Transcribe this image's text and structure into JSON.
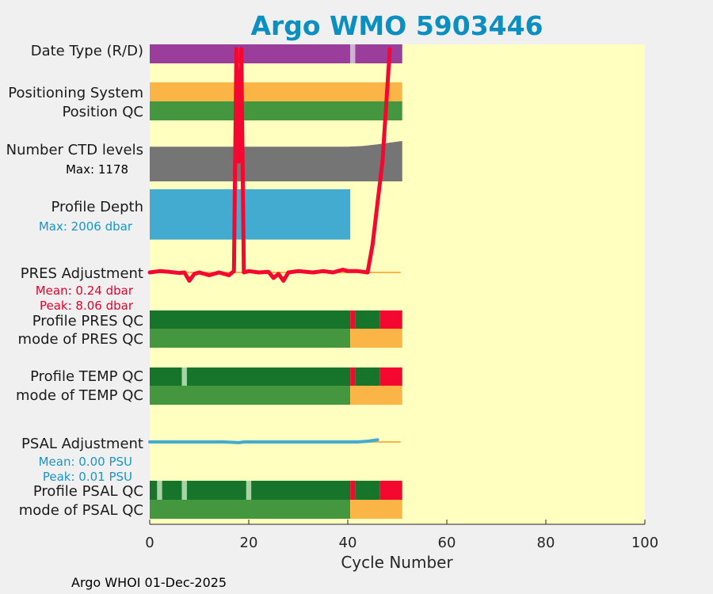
{
  "chart_data": {
    "type": "bar",
    "title": "Argo WMO 5903446",
    "xlabel": "Cycle Number",
    "footer": "Argo WHOI 01-Dec-2025",
    "xlim": [
      0,
      100
    ],
    "xticks": [
      0,
      20,
      40,
      60,
      80,
      100
    ],
    "data_extent": [
      0,
      51
    ],
    "colors": {
      "title": "#0b8fc0",
      "plot_bg": "#ffffc0",
      "real_time": "#9b3d9b",
      "delayed_gap": "#ccb2d4",
      "good": "#45973f",
      "good_dark": "#17742b",
      "probably_bad": "#fbb547",
      "bad": "#f40830",
      "missing_light": "#a9d2a5",
      "ctd": "#757575",
      "depth": "#43aad0",
      "pres_line": "#f40830",
      "psal_line": "#43aad0",
      "zero_line": "#fbb547",
      "pres_text": "#e8002a",
      "psal_text": "#1895c9"
    },
    "rows": {
      "data_type": {
        "label": "Date Type (R/D)",
        "segments": [
          {
            "from": 0,
            "to": 40.5,
            "color": "real_time"
          },
          {
            "from": 40.5,
            "to": 41.5,
            "color": "delayed_gap"
          },
          {
            "from": 41.5,
            "to": 51,
            "color": "real_time"
          }
        ]
      },
      "positioning_system": {
        "label": "Positioning System",
        "segments": [
          {
            "from": 0,
            "to": 51,
            "color": "probably_bad"
          }
        ]
      },
      "position_qc": {
        "label": "Position QC",
        "segments": [
          {
            "from": 0,
            "to": 51,
            "color": "good"
          }
        ]
      },
      "ctd_levels": {
        "label": "Number CTD levels",
        "max_label": "Max: 1178",
        "max": 1178,
        "values": [
          [
            0,
            1010
          ],
          [
            40,
            1010
          ],
          [
            43,
            1030
          ],
          [
            46,
            1080
          ],
          [
            48,
            1120
          ],
          [
            51,
            1178
          ]
        ]
      },
      "profile_depth": {
        "label": "Profile Depth",
        "max_label": "Max: 2006 dbar",
        "max_dbar": 2006,
        "values": [
          [
            0,
            1960
          ],
          [
            40.5,
            1960
          ]
        ]
      },
      "pres_adjustment": {
        "label": "PRES Adjustment",
        "mean_label": "Mean: 0.24 dbar",
        "peak_label": "Peak: 8.06 dbar",
        "line": [
          [
            0,
            0.0
          ],
          [
            2,
            0.05
          ],
          [
            4,
            0.02
          ],
          [
            6,
            -0.02
          ],
          [
            7,
            0.0
          ],
          [
            8,
            -0.3
          ],
          [
            9,
            -0.05
          ],
          [
            10,
            0.0
          ],
          [
            12,
            -0.1
          ],
          [
            14,
            0.0
          ],
          [
            16,
            -0.1
          ],
          [
            17,
            0.05
          ],
          [
            17.5,
            8.06
          ],
          [
            18,
            4.0
          ],
          [
            18.5,
            8.06
          ],
          [
            19,
            0.0
          ],
          [
            20,
            0.05
          ],
          [
            22,
            0.0
          ],
          [
            24,
            0.02
          ],
          [
            25,
            -0.2
          ],
          [
            26,
            -0.05
          ],
          [
            27,
            -0.3
          ],
          [
            28,
            0.0
          ],
          [
            30,
            0.05
          ],
          [
            33,
            0.0
          ],
          [
            35,
            0.05
          ],
          [
            37,
            0.0
          ],
          [
            39,
            0.1
          ],
          [
            40,
            0.05
          ],
          [
            42,
            0.05
          ],
          [
            44,
            0.0
          ],
          [
            45,
            1.0
          ],
          [
            46,
            2.5
          ],
          [
            47,
            4.0
          ],
          [
            48.5,
            8.06
          ]
        ]
      },
      "profile_pres_qc": {
        "label": "Profile PRES QC",
        "segments": [
          {
            "from": 0,
            "to": 40.5,
            "color": "good_dark"
          },
          {
            "from": 40.5,
            "to": 41.5,
            "color": "bad"
          },
          {
            "from": 41.5,
            "to": 46.5,
            "color": "good_dark"
          },
          {
            "from": 46.5,
            "to": 51,
            "color": "bad"
          }
        ]
      },
      "mode_pres_qc": {
        "label": "mode of PRES QC",
        "segments": [
          {
            "from": 0,
            "to": 40.5,
            "color": "good"
          },
          {
            "from": 40.5,
            "to": 51,
            "color": "probably_bad"
          }
        ]
      },
      "profile_temp_qc": {
        "label": "Profile TEMP QC",
        "segments": [
          {
            "from": 0,
            "to": 6.5,
            "color": "good_dark"
          },
          {
            "from": 6.5,
            "to": 7.5,
            "color": "missing_light"
          },
          {
            "from": 7.5,
            "to": 40.5,
            "color": "good_dark"
          },
          {
            "from": 40.5,
            "to": 41.5,
            "color": "bad"
          },
          {
            "from": 41.5,
            "to": 46.5,
            "color": "good_dark"
          },
          {
            "from": 46.5,
            "to": 51,
            "color": "bad"
          }
        ]
      },
      "mode_temp_qc": {
        "label": "mode of TEMP QC",
        "segments": [
          {
            "from": 0,
            "to": 40.5,
            "color": "good"
          },
          {
            "from": 40.5,
            "to": 51,
            "color": "probably_bad"
          }
        ]
      },
      "psal_adjustment": {
        "label": "PSAL Adjustment",
        "mean_label": "Mean: 0.00 PSU",
        "peak_label": "Peak: 0.01 PSU",
        "line": [
          [
            0,
            0.0
          ],
          [
            5,
            0.0
          ],
          [
            10,
            0.0
          ],
          [
            15,
            0.0
          ],
          [
            18,
            -0.001
          ],
          [
            19,
            0.0
          ],
          [
            25,
            0.0
          ],
          [
            30,
            0.0
          ],
          [
            35,
            0.0
          ],
          [
            40,
            0.0
          ],
          [
            42,
            0.0
          ],
          [
            44,
            0.001
          ],
          [
            46,
            0.003
          ]
        ]
      },
      "profile_psal_qc": {
        "label": "Profile PSAL QC",
        "segments": [
          {
            "from": 0,
            "to": 1.5,
            "color": "good_dark"
          },
          {
            "from": 1.5,
            "to": 2.5,
            "color": "missing_light"
          },
          {
            "from": 2.5,
            "to": 6.5,
            "color": "good_dark"
          },
          {
            "from": 6.5,
            "to": 7.5,
            "color": "missing_light"
          },
          {
            "from": 7.5,
            "to": 19.5,
            "color": "good_dark"
          },
          {
            "from": 19.5,
            "to": 20.5,
            "color": "missing_light"
          },
          {
            "from": 20.5,
            "to": 40.5,
            "color": "good_dark"
          },
          {
            "from": 40.5,
            "to": 41.5,
            "color": "bad"
          },
          {
            "from": 41.5,
            "to": 46.5,
            "color": "good_dark"
          },
          {
            "from": 46.5,
            "to": 51,
            "color": "bad"
          }
        ]
      },
      "mode_psal_qc": {
        "label": "mode of PSAL QC",
        "segments": [
          {
            "from": 0,
            "to": 40.5,
            "color": "good"
          },
          {
            "from": 40.5,
            "to": 51,
            "color": "probably_bad"
          }
        ]
      }
    }
  }
}
